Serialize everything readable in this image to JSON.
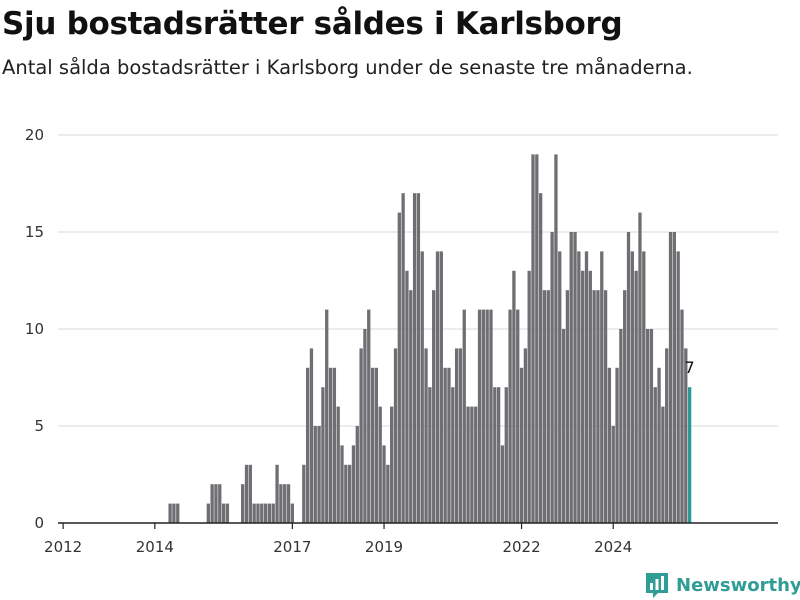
{
  "title": "Sju bostadsrätter såldes i Karlsborg",
  "subtitle": "Antal sålda bostadsrätter i Karlsborg under de senaste tre månaderna.",
  "brand": "Newsworthy",
  "colors": {
    "bar": "#6e6e73",
    "highlight": "#2a9a94",
    "brand": "#2f9c95"
  },
  "chart_data": {
    "type": "bar",
    "title": "Sju bostadsrätter såldes i Karlsborg",
    "subtitle": "Antal sålda bostadsrätter i Karlsborg under de senaste tre månaderna.",
    "x_tick_labels": [
      "2012",
      "2014",
      "2017",
      "2019",
      "2022",
      "2024"
    ],
    "y_ticks": [
      0,
      5,
      10,
      15,
      20
    ],
    "ylim": [
      0,
      20
    ],
    "grid": true,
    "data_label": "7",
    "periods_per_year": 12,
    "series": [
      {
        "values": [
          0,
          0,
          0,
          0,
          0,
          0,
          0,
          0,
          0,
          0,
          0,
          0,
          0,
          0,
          0,
          0,
          0,
          0,
          0,
          0,
          0,
          0,
          0,
          0,
          0,
          0,
          0,
          0,
          1,
          1,
          1,
          0,
          0,
          0,
          0,
          0,
          0,
          0,
          1,
          2,
          2,
          2,
          1,
          1,
          0,
          0,
          0,
          2,
          3,
          3,
          1,
          1,
          1,
          1,
          1,
          1,
          3,
          2,
          2,
          2,
          1,
          0,
          0,
          3,
          8,
          9,
          5,
          5,
          7,
          11,
          8,
          8,
          6,
          4,
          3,
          3,
          4,
          5,
          9,
          10,
          11,
          8,
          8,
          6,
          4,
          3,
          6,
          9,
          16,
          17,
          13,
          12,
          17,
          17,
          14,
          9,
          7,
          12,
          14,
          14,
          8,
          8,
          7,
          9,
          9,
          11,
          6,
          6,
          6,
          11,
          11,
          11,
          11,
          7,
          7,
          4,
          7,
          11,
          13,
          11,
          8,
          9,
          13,
          19,
          19,
          17,
          12,
          12,
          15,
          19,
          14,
          10,
          12,
          15,
          15,
          14,
          13,
          14,
          13,
          12,
          12,
          14,
          12,
          8,
          5,
          8,
          10,
          12,
          15,
          14,
          13,
          16,
          14,
          10,
          10,
          7,
          8,
          6,
          9,
          15,
          15,
          14,
          11,
          9,
          7
        ]
      }
    ]
  }
}
